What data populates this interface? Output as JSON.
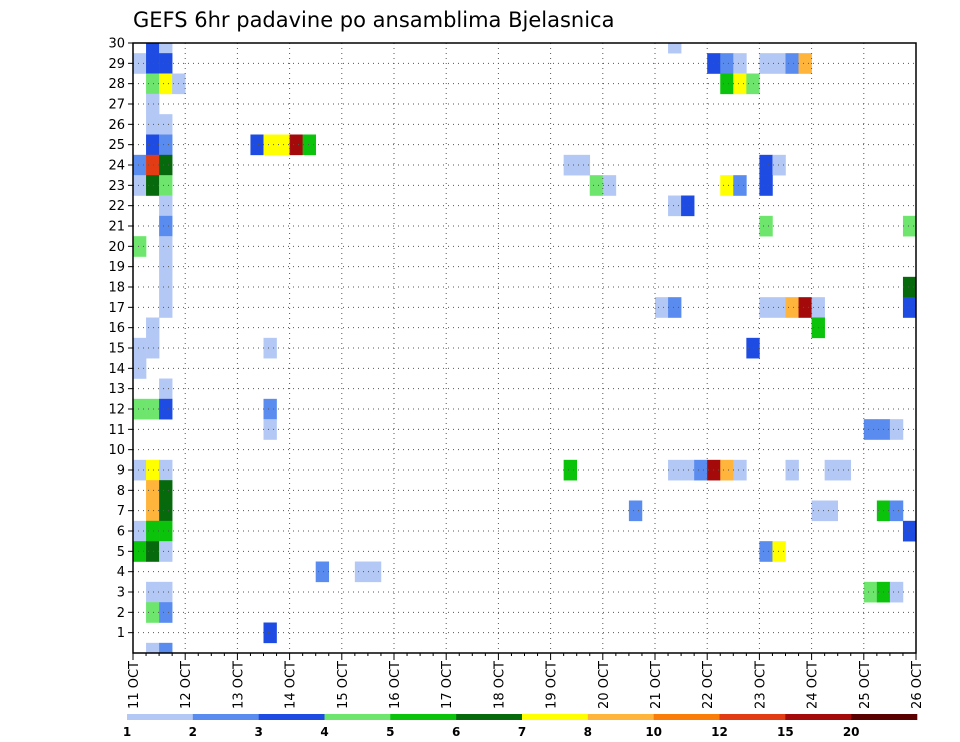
{
  "chart_data": {
    "type": "heatmap",
    "title": "GEFS 6hr padavine po ansamblima Bjelasnica",
    "xlabel": "",
    "ylabel": "",
    "x_tick_labels": [
      "11 OCT",
      "12 OCT",
      "13 OCT",
      "14 OCT",
      "15 OCT",
      "16 OCT",
      "17 OCT",
      "18 OCT",
      "19 OCT",
      "20 OCT",
      "21 OCT",
      "22 OCT",
      "23 OCT",
      "24 OCT",
      "25 OCT",
      "26 OCT"
    ],
    "x_range": [
      0,
      60
    ],
    "x_unit": "6-hour steps since 11 OCT 00Z",
    "y_tick_labels": [
      "1",
      "2",
      "3",
      "4",
      "5",
      "6",
      "7",
      "8",
      "9",
      "10",
      "11",
      "12",
      "13",
      "14",
      "15",
      "16",
      "17",
      "18",
      "19",
      "20",
      "21",
      "22",
      "23",
      "24",
      "25",
      "26",
      "27",
      "28",
      "29",
      "30"
    ],
    "y_range": [
      0,
      30
    ],
    "grid": "dotted",
    "colorbar": {
      "labels": [
        "1",
        "2",
        "3",
        "4",
        "5",
        "6",
        "7",
        "8",
        "10",
        "12",
        "15",
        "20"
      ],
      "colors": [
        "#b4c8f5",
        "#5a8cf0",
        "#1e4be1",
        "#6ee66e",
        "#0ac30a",
        "#06690c",
        "#ffff00",
        "#ffb43c",
        "#fa7d0a",
        "#e13c14",
        "#a50a0a",
        "#5a0000"
      ]
    },
    "cells": [
      [
        1,
        30,
        2
      ],
      [
        2,
        30,
        0
      ],
      [
        41,
        30,
        0
      ],
      [
        0,
        29,
        0
      ],
      [
        1,
        29,
        2
      ],
      [
        2,
        29,
        2
      ],
      [
        44,
        29,
        2
      ],
      [
        45,
        29,
        1
      ],
      [
        46,
        29,
        0
      ],
      [
        48,
        29,
        0
      ],
      [
        49,
        29,
        0
      ],
      [
        50,
        29,
        1
      ],
      [
        51,
        29,
        7
      ],
      [
        1,
        28,
        3
      ],
      [
        2,
        28,
        6
      ],
      [
        3,
        28,
        0
      ],
      [
        45,
        28,
        4
      ],
      [
        46,
        28,
        6
      ],
      [
        47,
        28,
        3
      ],
      [
        1,
        27,
        0
      ],
      [
        1,
        26,
        0
      ],
      [
        2,
        26,
        0
      ],
      [
        1,
        25,
        2
      ],
      [
        2,
        25,
        1
      ],
      [
        9,
        25,
        2
      ],
      [
        10,
        25,
        6
      ],
      [
        11,
        25,
        6
      ],
      [
        12,
        25,
        10
      ],
      [
        13,
        25,
        4
      ],
      [
        0,
        24,
        1
      ],
      [
        1,
        24,
        9
      ],
      [
        2,
        24,
        5
      ],
      [
        33,
        24,
        0
      ],
      [
        34,
        24,
        0
      ],
      [
        48,
        24,
        2
      ],
      [
        49,
        24,
        0
      ],
      [
        0,
        23,
        0
      ],
      [
        1,
        23,
        5
      ],
      [
        2,
        23,
        3
      ],
      [
        35,
        23,
        3
      ],
      [
        36,
        23,
        0
      ],
      [
        45,
        23,
        6
      ],
      [
        46,
        23,
        1
      ],
      [
        48,
        23,
        2
      ],
      [
        2,
        22,
        0
      ],
      [
        41,
        22,
        0
      ],
      [
        42,
        22,
        2
      ],
      [
        2,
        21,
        1
      ],
      [
        48,
        21,
        3
      ],
      [
        59,
        21,
        3
      ],
      [
        0,
        20,
        3
      ],
      [
        2,
        20,
        0
      ],
      [
        2,
        19,
        0
      ],
      [
        2,
        18,
        0
      ],
      [
        59,
        18,
        5
      ],
      [
        2,
        17,
        0
      ],
      [
        40,
        17,
        0
      ],
      [
        41,
        17,
        1
      ],
      [
        48,
        17,
        0
      ],
      [
        49,
        17,
        0
      ],
      [
        50,
        17,
        7
      ],
      [
        51,
        17,
        10
      ],
      [
        52,
        17,
        0
      ],
      [
        59,
        17,
        2
      ],
      [
        1,
        16,
        0
      ],
      [
        52,
        16,
        4
      ],
      [
        0,
        15,
        0
      ],
      [
        1,
        15,
        0
      ],
      [
        10,
        15,
        0
      ],
      [
        47,
        15,
        2
      ],
      [
        0,
        14,
        0
      ],
      [
        2,
        13,
        0
      ],
      [
        0,
        12,
        3
      ],
      [
        1,
        12,
        3
      ],
      [
        2,
        12,
        2
      ],
      [
        10,
        12,
        1
      ],
      [
        10,
        11,
        0
      ],
      [
        56,
        11,
        1
      ],
      [
        57,
        11,
        1
      ],
      [
        58,
        11,
        0
      ],
      [
        0,
        9,
        0
      ],
      [
        1,
        9,
        6
      ],
      [
        2,
        9,
        0
      ],
      [
        33,
        9,
        4
      ],
      [
        41,
        9,
        0
      ],
      [
        42,
        9,
        0
      ],
      [
        43,
        9,
        1
      ],
      [
        44,
        9,
        10
      ],
      [
        45,
        9,
        7
      ],
      [
        46,
        9,
        0
      ],
      [
        50,
        9,
        0
      ],
      [
        53,
        9,
        0
      ],
      [
        54,
        9,
        0
      ],
      [
        1,
        8,
        7
      ],
      [
        2,
        8,
        5
      ],
      [
        1,
        7,
        7
      ],
      [
        2,
        7,
        5
      ],
      [
        38,
        7,
        1
      ],
      [
        52,
        7,
        0
      ],
      [
        53,
        7,
        0
      ],
      [
        57,
        7,
        4
      ],
      [
        58,
        7,
        1
      ],
      [
        0,
        6,
        0
      ],
      [
        1,
        6,
        4
      ],
      [
        2,
        6,
        4
      ],
      [
        59,
        6,
        2
      ],
      [
        0,
        5,
        4
      ],
      [
        1,
        5,
        5
      ],
      [
        2,
        5,
        0
      ],
      [
        48,
        5,
        1
      ],
      [
        49,
        5,
        6
      ],
      [
        14,
        4,
        1
      ],
      [
        17,
        4,
        0
      ],
      [
        18,
        4,
        0
      ],
      [
        1,
        3,
        0
      ],
      [
        2,
        3,
        0
      ],
      [
        56,
        3,
        3
      ],
      [
        57,
        3,
        4
      ],
      [
        58,
        3,
        0
      ],
      [
        1,
        2,
        3
      ],
      [
        2,
        2,
        1
      ],
      [
        10,
        1,
        2
      ],
      [
        1,
        0,
        0
      ],
      [
        2,
        0,
        1
      ]
    ]
  }
}
